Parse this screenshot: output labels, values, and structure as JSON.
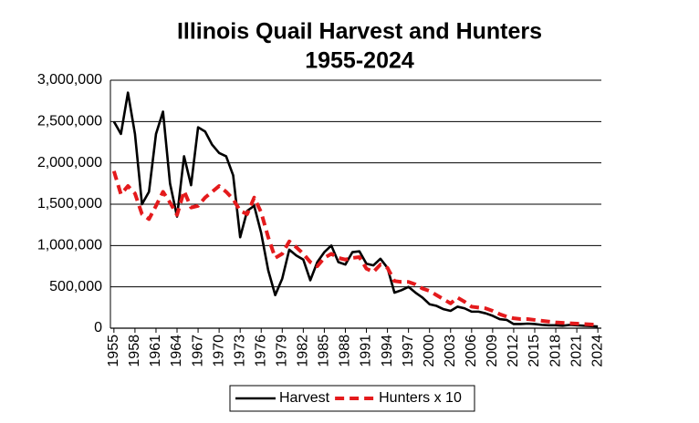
{
  "chart_data": {
    "type": "line",
    "title": "Illinois Quail Harvest and Hunters",
    "subtitle": "1955-2024",
    "x": [
      1955,
      1956,
      1957,
      1958,
      1959,
      1960,
      1961,
      1962,
      1963,
      1964,
      1965,
      1966,
      1967,
      1968,
      1969,
      1970,
      1971,
      1972,
      1973,
      1974,
      1975,
      1976,
      1977,
      1978,
      1979,
      1980,
      1981,
      1982,
      1983,
      1984,
      1985,
      1986,
      1987,
      1988,
      1989,
      1990,
      1991,
      1992,
      1993,
      1994,
      1995,
      1996,
      1997,
      1998,
      1999,
      2000,
      2001,
      2002,
      2003,
      2004,
      2005,
      2006,
      2007,
      2008,
      2009,
      2010,
      2011,
      2012,
      2013,
      2014,
      2015,
      2016,
      2017,
      2018,
      2019,
      2020,
      2021,
      2022,
      2023,
      2024
    ],
    "xlim": [
      1954.5,
      2024.5
    ],
    "xticks": [
      1955,
      1958,
      1961,
      1964,
      1967,
      1970,
      1973,
      1976,
      1979,
      1982,
      1985,
      1988,
      1991,
      1994,
      1997,
      2000,
      2003,
      2006,
      2009,
      2012,
      2015,
      2018,
      2021,
      2024
    ],
    "ylim": [
      0,
      3000000
    ],
    "yticks": [
      0,
      {
        "value": 500000,
        "label": "500,000"
      },
      {
        "value": 1000000,
        "label": "1,000,000"
      },
      {
        "value": 1500000,
        "label": "1,500,000"
      },
      {
        "value": 2000000,
        "label": "2,000,000"
      },
      {
        "value": 2500000,
        "label": "2,500,000"
      },
      {
        "value": 3000000,
        "label": "3,000,000"
      }
    ],
    "grid": true,
    "legend": "bottom",
    "series": [
      {
        "name": "Harvest",
        "color": "#000000",
        "dashed": false,
        "values": [
          2500000,
          2350000,
          2850000,
          2350000,
          1500000,
          1650000,
          2350000,
          2620000,
          1750000,
          1350000,
          2080000,
          1730000,
          2430000,
          2380000,
          2220000,
          2120000,
          2080000,
          1850000,
          1100000,
          1420000,
          1480000,
          1150000,
          700000,
          400000,
          600000,
          950000,
          880000,
          830000,
          580000,
          800000,
          920000,
          1000000,
          800000,
          770000,
          920000,
          930000,
          780000,
          760000,
          840000,
          730000,
          430000,
          460000,
          500000,
          430000,
          370000,
          290000,
          270000,
          230000,
          210000,
          260000,
          240000,
          200000,
          200000,
          180000,
          150000,
          110000,
          100000,
          50000,
          50000,
          55000,
          50000,
          40000,
          35000,
          35000,
          30000,
          40000,
          35000,
          30000,
          25000,
          20000
        ]
      },
      {
        "name": "Hunters x 10",
        "color": "#e41a1c",
        "dashed": true,
        "values": [
          1900000,
          1620000,
          1720000,
          1630000,
          1380000,
          1320000,
          1480000,
          1650000,
          1520000,
          1370000,
          1660000,
          1460000,
          1480000,
          1580000,
          1650000,
          1720000,
          1650000,
          1560000,
          1420000,
          1380000,
          1580000,
          1400000,
          1100000,
          850000,
          900000,
          1050000,
          980000,
          900000,
          800000,
          750000,
          850000,
          900000,
          850000,
          830000,
          850000,
          860000,
          720000,
          680000,
          770000,
          730000,
          570000,
          560000,
          560000,
          530000,
          480000,
          450000,
          400000,
          350000,
          300000,
          370000,
          320000,
          260000,
          250000,
          240000,
          210000,
          170000,
          140000,
          120000,
          110000,
          110000,
          100000,
          90000,
          80000,
          70000,
          65000,
          60000,
          55000,
          50000,
          45000,
          40000
        ]
      }
    ]
  }
}
